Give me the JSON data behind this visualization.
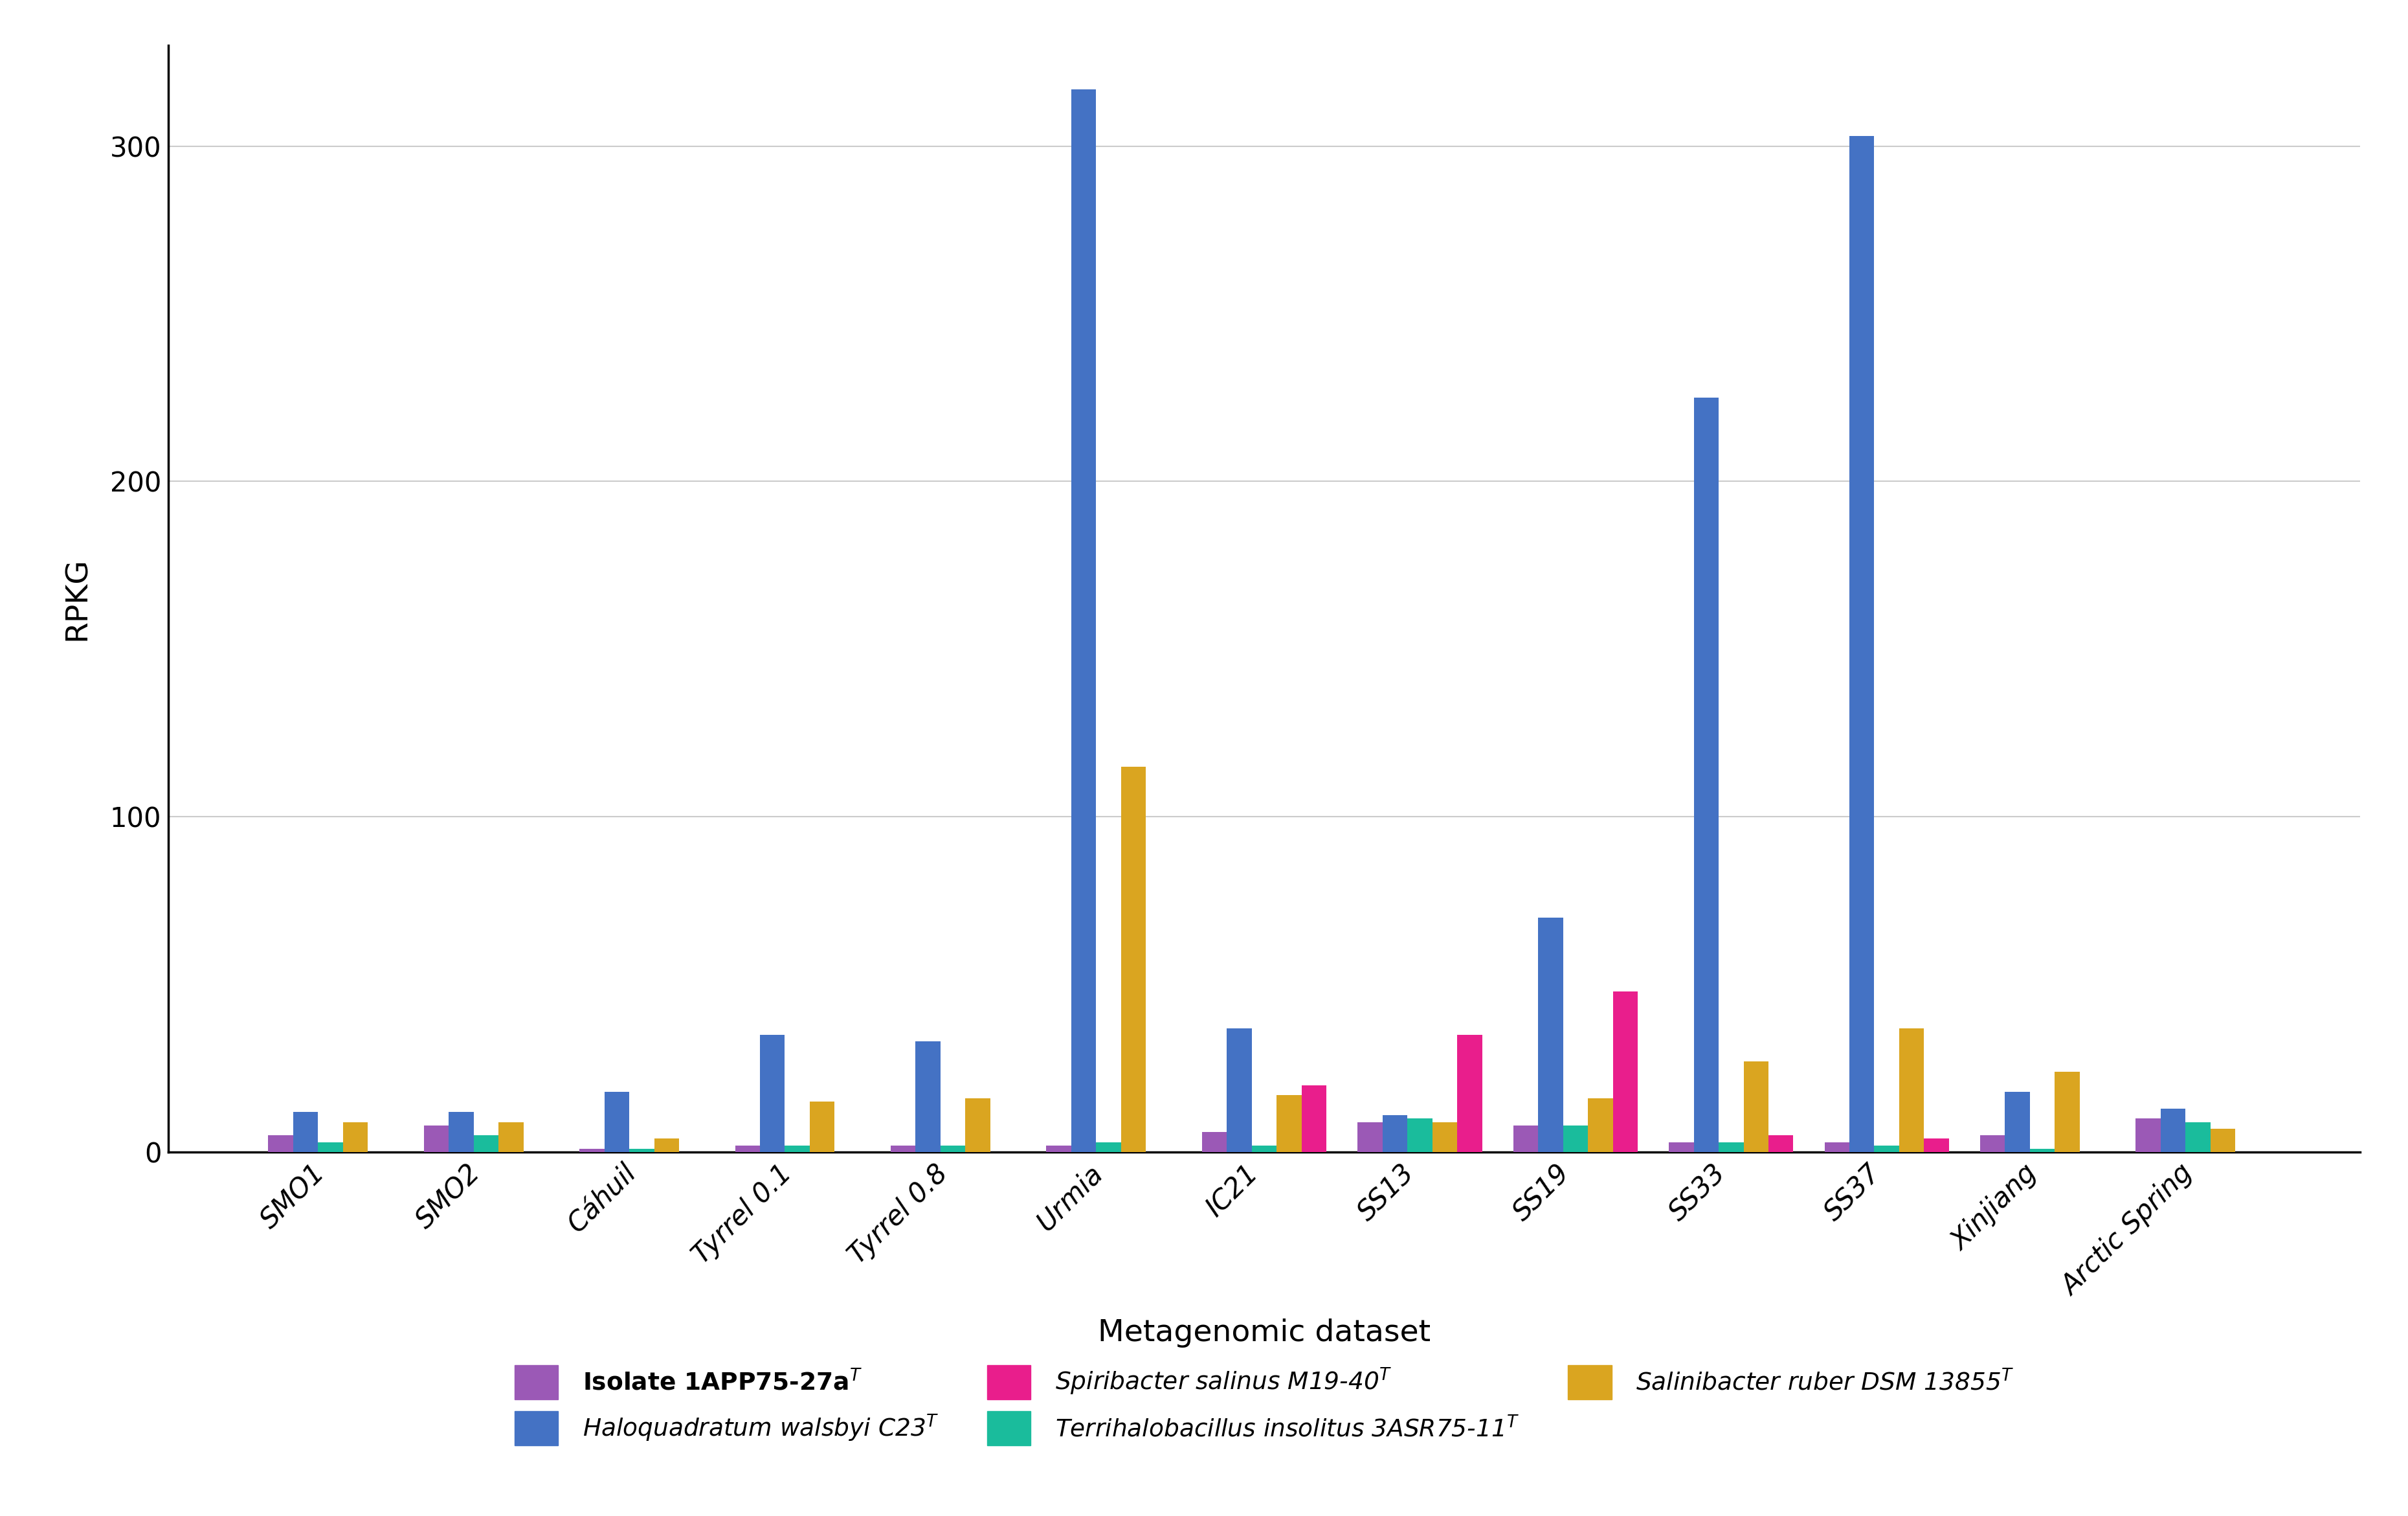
{
  "categories": [
    "SMO1",
    "SMO2",
    "Cáhuil",
    "Tyrrel 0.1",
    "Tyrrel 0.8",
    "Urmia",
    "IC21",
    "SS13",
    "SS19",
    "SS33",
    "SS37",
    "Xinjiang",
    "Arctic Spring"
  ],
  "series_order": [
    "isolate",
    "halo",
    "terri",
    "salin",
    "spiri"
  ],
  "series": {
    "isolate": {
      "label": "Isolate 1APP75-27a",
      "superscript": "T",
      "color": "#9B59B6",
      "italic": false,
      "bold": true,
      "values": [
        5,
        8,
        1,
        2,
        2,
        2,
        6,
        9,
        8,
        3,
        3,
        5,
        10
      ]
    },
    "halo": {
      "label": "Haloquadratum walsbyi C23",
      "superscript": "T",
      "color": "#4472C4",
      "italic": true,
      "bold": false,
      "values": [
        12,
        12,
        18,
        35,
        33,
        317,
        37,
        11,
        70,
        225,
        303,
        18,
        13
      ]
    },
    "terri": {
      "label": "Terrihalobacillus insolitus 3ASR75-11",
      "superscript": "T",
      "color": "#1ABC9C",
      "italic": true,
      "bold": false,
      "values": [
        3,
        5,
        1,
        2,
        2,
        3,
        2,
        10,
        8,
        3,
        2,
        1,
        9
      ]
    },
    "salin": {
      "label": "Salinibacter ruber DSM 13855",
      "superscript": "T",
      "color": "#DAA520",
      "italic": true,
      "bold": false,
      "values": [
        9,
        9,
        4,
        15,
        16,
        115,
        17,
        9,
        16,
        27,
        37,
        24,
        7
      ]
    },
    "spiri": {
      "label": "Spiribacter salinus M19-40",
      "superscript": "T",
      "color": "#E91E8C",
      "italic": true,
      "bold": false,
      "values": [
        0,
        0,
        0,
        0,
        0,
        0,
        20,
        35,
        48,
        5,
        4,
        0,
        0
      ]
    }
  },
  "ylabel": "RPKG",
  "xlabel": "Metagenomic dataset",
  "ylim": [
    0,
    330
  ],
  "yticks": [
    0,
    100,
    200,
    300
  ],
  "bar_width": 0.16,
  "legend_row1": [
    "isolate",
    "halo",
    "spiri"
  ],
  "legend_row2": [
    "terri",
    "salin"
  ]
}
